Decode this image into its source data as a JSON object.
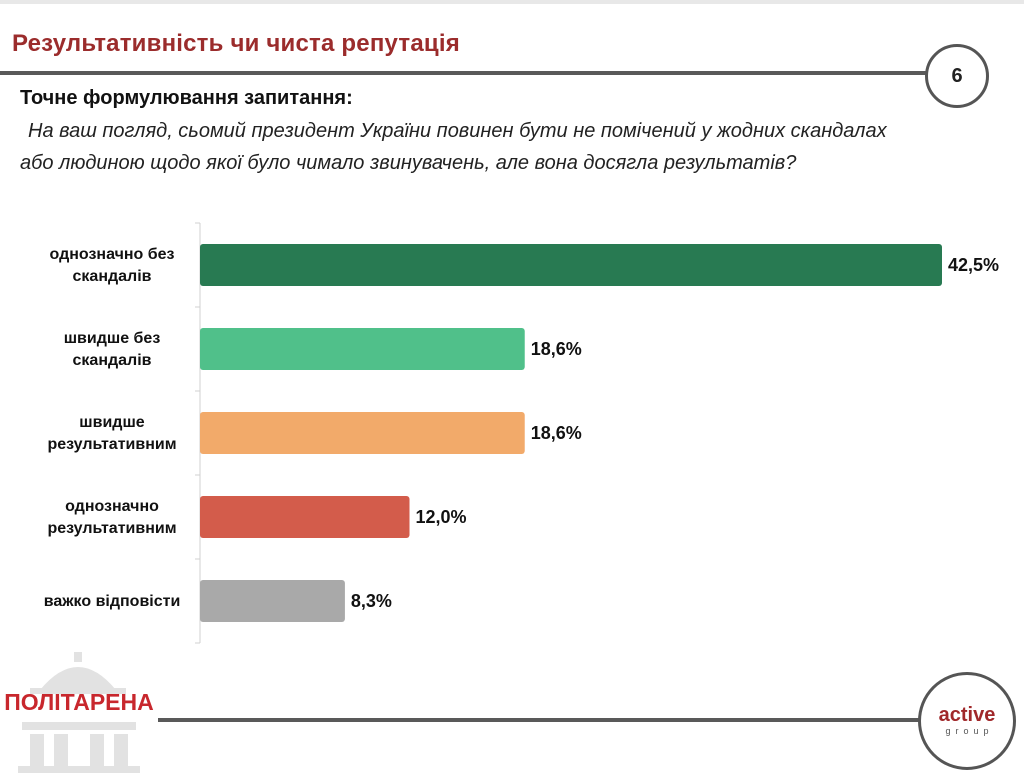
{
  "header": {
    "title": "Результативність чи чиста репутація",
    "page_number": "6"
  },
  "question": {
    "label": "Точне формулювання запитання:",
    "line1": "На ваш погляд, сьомий президент України повинен бути не помічений у жодних скандалах",
    "line2": "або людиною щодо якої було чимало звинувачень, але вона досягла результатів?"
  },
  "chart_data": {
    "type": "bar",
    "orientation": "horizontal",
    "categories": [
      [
        "однозначно без",
        "скандалів"
      ],
      [
        "швидше без",
        "скандалів"
      ],
      [
        "швидше",
        "результативним"
      ],
      [
        "однозначно",
        "результативним"
      ],
      [
        "важко відповісти"
      ]
    ],
    "values": [
      42.5,
      18.6,
      18.6,
      12.0,
      8.3
    ],
    "value_labels": [
      "42,5%",
      "18,6%",
      "18,6%",
      "12,0%",
      "8,3%"
    ],
    "colors": [
      "#287a52",
      "#50c08a",
      "#f2aa6a",
      "#d35c4b",
      "#a9a9a9"
    ],
    "xlim": [
      0,
      42.5
    ],
    "unit": "%"
  },
  "logos": {
    "left": "ПОЛІТАРЕНА",
    "right_main": "active",
    "right_sub": "group"
  },
  "theme": {
    "title_color": "#9b2c2c",
    "rule_color": "#595959"
  }
}
